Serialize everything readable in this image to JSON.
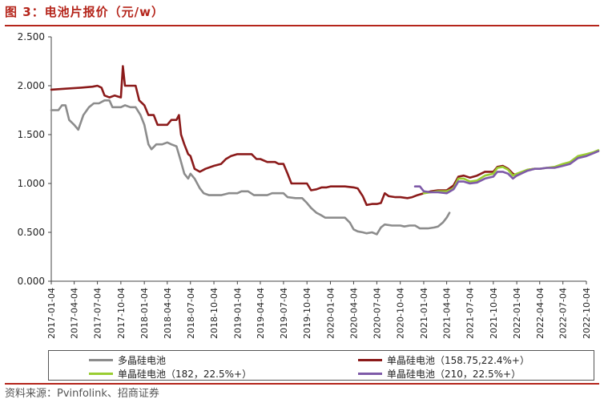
{
  "title": "图 3：电池片报价（元/w）",
  "source": "资料来源：Pvinfolink、招商证券",
  "colors": {
    "accent": "#b5251b",
    "poly": "#8c8c8c",
    "mono158": "#8b1a1a",
    "mono182": "#9acd32",
    "mono210": "#7e5aa8"
  },
  "chart_data": {
    "type": "line",
    "title": "电池片报价（元/w）",
    "ylim": [
      0,
      2.5
    ],
    "yticks": [
      "0.000",
      "0.500",
      "1.000",
      "1.500",
      "2.000",
      "2.500"
    ],
    "xticks": [
      "2017-01-04",
      "2017-04-04",
      "2017-07-04",
      "2017-10-04",
      "2018-01-04",
      "2018-04-04",
      "2018-07-04",
      "2018-10-04",
      "2019-01-04",
      "2019-04-04",
      "2019-07-04",
      "2019-10-04",
      "2020-01-04",
      "2020-04-04",
      "2020-07-04",
      "2020-10-04",
      "2021-01-04",
      "2021-04-04",
      "2021-07-04",
      "2021-10-04",
      "2022-01-04",
      "2022-04-04",
      "2022-07-04",
      "2022-10-04"
    ],
    "grid": false,
    "legend_position": "bottom",
    "series": [
      {
        "name": "多晶硅电池",
        "color": "#8c8c8c",
        "points": [
          [
            "2017-01-04",
            1.75
          ],
          [
            "2017-02-01",
            1.75
          ],
          [
            "2017-02-15",
            1.8
          ],
          [
            "2017-03-01",
            1.8
          ],
          [
            "2017-03-15",
            1.65
          ],
          [
            "2017-04-04",
            1.6
          ],
          [
            "2017-04-20",
            1.55
          ],
          [
            "2017-05-10",
            1.7
          ],
          [
            "2017-06-01",
            1.78
          ],
          [
            "2017-06-20",
            1.82
          ],
          [
            "2017-07-10",
            1.82
          ],
          [
            "2017-08-01",
            1.85
          ],
          [
            "2017-08-20",
            1.85
          ],
          [
            "2017-09-01",
            1.78
          ],
          [
            "2017-10-04",
            1.78
          ],
          [
            "2017-10-20",
            1.8
          ],
          [
            "2017-11-10",
            1.78
          ],
          [
            "2017-12-01",
            1.78
          ],
          [
            "2017-12-20",
            1.7
          ],
          [
            "2018-01-04",
            1.6
          ],
          [
            "2018-01-20",
            1.4
          ],
          [
            "2018-02-01",
            1.35
          ],
          [
            "2018-02-20",
            1.4
          ],
          [
            "2018-03-15",
            1.4
          ],
          [
            "2018-04-04",
            1.42
          ],
          [
            "2018-04-20",
            1.4
          ],
          [
            "2018-05-10",
            1.38
          ],
          [
            "2018-05-25",
            1.25
          ],
          [
            "2018-06-10",
            1.1
          ],
          [
            "2018-06-25",
            1.05
          ],
          [
            "2018-07-04",
            1.1
          ],
          [
            "2018-07-20",
            1.05
          ],
          [
            "2018-08-10",
            0.95
          ],
          [
            "2018-08-25",
            0.9
          ],
          [
            "2018-09-15",
            0.88
          ],
          [
            "2018-10-04",
            0.88
          ],
          [
            "2018-11-01",
            0.88
          ],
          [
            "2018-12-01",
            0.9
          ],
          [
            "2018-12-20",
            0.9
          ],
          [
            "2019-01-04",
            0.9
          ],
          [
            "2019-01-20",
            0.92
          ],
          [
            "2019-02-15",
            0.92
          ],
          [
            "2019-03-10",
            0.88
          ],
          [
            "2019-04-04",
            0.88
          ],
          [
            "2019-05-01",
            0.88
          ],
          [
            "2019-05-20",
            0.9
          ],
          [
            "2019-06-15",
            0.9
          ],
          [
            "2019-07-04",
            0.9
          ],
          [
            "2019-07-20",
            0.86
          ],
          [
            "2019-08-20",
            0.85
          ],
          [
            "2019-09-15",
            0.85
          ],
          [
            "2019-10-04",
            0.8
          ],
          [
            "2019-10-20",
            0.75
          ],
          [
            "2019-11-10",
            0.7
          ],
          [
            "2019-11-25",
            0.68
          ],
          [
            "2019-12-15",
            0.65
          ],
          [
            "2020-01-04",
            0.65
          ],
          [
            "2020-02-01",
            0.65
          ],
          [
            "2020-03-01",
            0.65
          ],
          [
            "2020-03-20",
            0.6
          ],
          [
            "2020-04-04",
            0.53
          ],
          [
            "2020-04-20",
            0.51
          ],
          [
            "2020-05-10",
            0.5
          ],
          [
            "2020-05-25",
            0.49
          ],
          [
            "2020-06-15",
            0.5
          ],
          [
            "2020-07-04",
            0.48
          ],
          [
            "2020-07-20",
            0.55
          ],
          [
            "2020-08-04",
            0.58
          ],
          [
            "2020-09-01",
            0.57
          ],
          [
            "2020-10-04",
            0.57
          ],
          [
            "2020-10-20",
            0.56
          ],
          [
            "2020-11-10",
            0.57
          ],
          [
            "2020-12-01",
            0.57
          ],
          [
            "2020-12-20",
            0.54
          ],
          [
            "2021-01-04",
            0.54
          ],
          [
            "2021-01-20",
            0.54
          ],
          [
            "2021-02-15",
            0.55
          ],
          [
            "2021-03-01",
            0.56
          ],
          [
            "2021-03-20",
            0.6
          ],
          [
            "2021-04-04",
            0.65
          ],
          [
            "2021-04-15",
            0.7
          ]
        ]
      },
      {
        "name": "单晶硅电池（158.75,22.4%+）",
        "color": "#8b1a1a",
        "points": [
          [
            "2017-01-04",
            1.96
          ],
          [
            "2017-03-01",
            1.97
          ],
          [
            "2017-05-01",
            1.98
          ],
          [
            "2017-06-15",
            1.99
          ],
          [
            "2017-07-04",
            2.0
          ],
          [
            "2017-07-20",
            1.98
          ],
          [
            "2017-08-01",
            1.9
          ],
          [
            "2017-08-20",
            1.88
          ],
          [
            "2017-09-10",
            1.9
          ],
          [
            "2017-10-04",
            1.88
          ],
          [
            "2017-10-12",
            2.2
          ],
          [
            "2017-10-20",
            2.0
          ],
          [
            "2017-11-10",
            2.0
          ],
          [
            "2017-12-01",
            2.0
          ],
          [
            "2017-12-15",
            1.85
          ],
          [
            "2018-01-04",
            1.8
          ],
          [
            "2018-01-20",
            1.7
          ],
          [
            "2018-02-10",
            1.7
          ],
          [
            "2018-02-25",
            1.6
          ],
          [
            "2018-03-15",
            1.6
          ],
          [
            "2018-04-04",
            1.6
          ],
          [
            "2018-04-20",
            1.65
          ],
          [
            "2018-05-10",
            1.65
          ],
          [
            "2018-05-20",
            1.7
          ],
          [
            "2018-05-28",
            1.5
          ],
          [
            "2018-06-10",
            1.4
          ],
          [
            "2018-06-25",
            1.3
          ],
          [
            "2018-07-04",
            1.28
          ],
          [
            "2018-07-20",
            1.15
          ],
          [
            "2018-08-10",
            1.12
          ],
          [
            "2018-09-01",
            1.15
          ],
          [
            "2018-10-04",
            1.18
          ],
          [
            "2018-11-01",
            1.2
          ],
          [
            "2018-11-20",
            1.25
          ],
          [
            "2018-12-10",
            1.28
          ],
          [
            "2019-01-04",
            1.3
          ],
          [
            "2019-02-01",
            1.3
          ],
          [
            "2019-03-01",
            1.3
          ],
          [
            "2019-03-20",
            1.25
          ],
          [
            "2019-04-04",
            1.25
          ],
          [
            "2019-05-01",
            1.22
          ],
          [
            "2019-06-01",
            1.22
          ],
          [
            "2019-06-15",
            1.2
          ],
          [
            "2019-07-04",
            1.2
          ],
          [
            "2019-07-20",
            1.1
          ],
          [
            "2019-08-04",
            1.0
          ],
          [
            "2019-09-01",
            1.0
          ],
          [
            "2019-10-04",
            1.0
          ],
          [
            "2019-10-20",
            0.93
          ],
          [
            "2019-11-10",
            0.94
          ],
          [
            "2019-12-01",
            0.96
          ],
          [
            "2019-12-20",
            0.96
          ],
          [
            "2020-01-04",
            0.97
          ],
          [
            "2020-02-01",
            0.97
          ],
          [
            "2020-03-01",
            0.97
          ],
          [
            "2020-04-04",
            0.96
          ],
          [
            "2020-04-20",
            0.95
          ],
          [
            "2020-05-10",
            0.87
          ],
          [
            "2020-05-25",
            0.78
          ],
          [
            "2020-06-15",
            0.79
          ],
          [
            "2020-07-04",
            0.79
          ],
          [
            "2020-07-20",
            0.8
          ],
          [
            "2020-08-04",
            0.9
          ],
          [
            "2020-08-20",
            0.87
          ],
          [
            "2020-09-15",
            0.86
          ],
          [
            "2020-10-04",
            0.86
          ],
          [
            "2020-11-01",
            0.85
          ],
          [
            "2020-11-20",
            0.86
          ],
          [
            "2020-12-10",
            0.88
          ],
          [
            "2021-01-04",
            0.9
          ],
          [
            "2021-02-01",
            0.92
          ],
          [
            "2021-03-01",
            0.93
          ],
          [
            "2021-04-04",
            0.93
          ],
          [
            "2021-05-01",
            0.98
          ],
          [
            "2021-05-20",
            1.07
          ],
          [
            "2021-06-10",
            1.08
          ],
          [
            "2021-07-04",
            1.06
          ],
          [
            "2021-08-01",
            1.08
          ],
          [
            "2021-09-01",
            1.12
          ],
          [
            "2021-10-04",
            1.12
          ],
          [
            "2021-10-20",
            1.17
          ],
          [
            "2021-11-10",
            1.18
          ],
          [
            "2021-12-01",
            1.15
          ],
          [
            "2021-12-20",
            1.1
          ],
          [
            "2022-01-04",
            1.08
          ],
          [
            "2022-01-20",
            1.1
          ],
          [
            "2022-02-15",
            1.14
          ],
          [
            "2022-03-15",
            1.15
          ]
        ]
      },
      {
        "name": "单晶硅电池（182，22.5%+）",
        "color": "#9acd32",
        "points": [
          [
            "2021-01-04",
            0.9
          ],
          [
            "2021-02-01",
            0.91
          ],
          [
            "2021-03-01",
            0.92
          ],
          [
            "2021-04-04",
            0.92
          ],
          [
            "2021-05-01",
            0.95
          ],
          [
            "2021-05-20",
            1.05
          ],
          [
            "2021-06-10",
            1.05
          ],
          [
            "2021-07-04",
            1.02
          ],
          [
            "2021-08-01",
            1.03
          ],
          [
            "2021-09-01",
            1.08
          ],
          [
            "2021-10-04",
            1.1
          ],
          [
            "2021-10-20",
            1.16
          ],
          [
            "2021-11-10",
            1.17
          ],
          [
            "2021-12-01",
            1.14
          ],
          [
            "2021-12-20",
            1.08
          ],
          [
            "2022-01-04",
            1.1
          ],
          [
            "2022-02-15",
            1.14
          ],
          [
            "2022-03-15",
            1.15
          ],
          [
            "2022-04-04",
            1.15
          ],
          [
            "2022-05-01",
            1.16
          ],
          [
            "2022-06-01",
            1.17
          ],
          [
            "2022-07-04",
            1.2
          ],
          [
            "2022-08-01",
            1.22
          ],
          [
            "2022-09-01",
            1.28
          ],
          [
            "2022-10-04",
            1.3
          ],
          [
            "2022-11-01",
            1.32
          ],
          [
            "2022-11-20",
            1.34
          ]
        ]
      },
      {
        "name": "单晶硅电池（210，22.5%+）",
        "color": "#7e5aa8",
        "points": [
          [
            "2020-12-01",
            0.97
          ],
          [
            "2020-12-20",
            0.97
          ],
          [
            "2021-01-04",
            0.92
          ],
          [
            "2021-02-01",
            0.91
          ],
          [
            "2021-03-01",
            0.91
          ],
          [
            "2021-04-04",
            0.9
          ],
          [
            "2021-05-01",
            0.94
          ],
          [
            "2021-05-20",
            1.02
          ],
          [
            "2021-06-10",
            1.02
          ],
          [
            "2021-07-04",
            1.0
          ],
          [
            "2021-08-01",
            1.01
          ],
          [
            "2021-09-01",
            1.05
          ],
          [
            "2021-10-04",
            1.07
          ],
          [
            "2021-10-20",
            1.12
          ],
          [
            "2021-11-10",
            1.12
          ],
          [
            "2021-12-01",
            1.1
          ],
          [
            "2021-12-20",
            1.05
          ],
          [
            "2022-01-04",
            1.08
          ],
          [
            "2022-02-15",
            1.13
          ],
          [
            "2022-03-15",
            1.15
          ],
          [
            "2022-04-04",
            1.15
          ],
          [
            "2022-05-01",
            1.16
          ],
          [
            "2022-06-01",
            1.16
          ],
          [
            "2022-07-04",
            1.18
          ],
          [
            "2022-08-01",
            1.2
          ],
          [
            "2022-09-01",
            1.26
          ],
          [
            "2022-10-04",
            1.28
          ],
          [
            "2022-11-01",
            1.31
          ],
          [
            "2022-11-20",
            1.33
          ]
        ]
      }
    ]
  }
}
